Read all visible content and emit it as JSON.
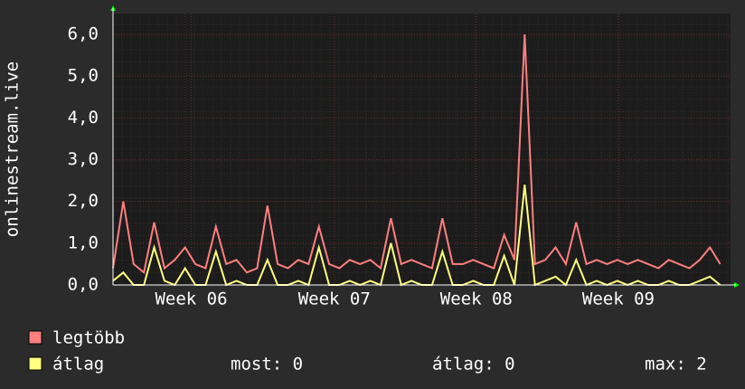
{
  "chart_data": {
    "type": "line",
    "y_label": "onlinestream.live",
    "x": [
      0,
      1,
      2,
      3,
      4,
      5,
      6,
      7,
      8,
      9,
      10,
      11,
      12,
      13,
      14,
      15,
      16,
      17,
      18,
      19,
      20,
      21,
      22,
      23,
      24,
      25,
      26,
      27,
      28,
      29,
      30,
      31,
      32,
      33,
      34,
      35,
      36,
      37,
      38,
      39,
      40,
      41,
      42,
      43,
      44,
      45,
      46,
      47,
      48,
      49,
      50,
      51,
      52,
      53,
      54,
      55,
      56,
      57,
      58,
      59
    ],
    "xlim": [
      0,
      60
    ],
    "xticks": [
      {
        "value": 7.6,
        "label": "Week 06"
      },
      {
        "value": 21.5,
        "label": "Week 07"
      },
      {
        "value": 35.3,
        "label": "Week 08"
      },
      {
        "value": 49.1,
        "label": "Week 09"
      }
    ],
    "ylim": [
      0,
      6.5
    ],
    "yticks": [
      {
        "value": 0,
        "label": "0,0"
      },
      {
        "value": 1,
        "label": "1,0"
      },
      {
        "value": 2,
        "label": "2,0"
      },
      {
        "value": 3,
        "label": "3,0"
      },
      {
        "value": 4,
        "label": "4,0"
      },
      {
        "value": 5,
        "label": "5,0"
      },
      {
        "value": 6,
        "label": "6,0"
      }
    ],
    "grid": true,
    "series": [
      {
        "name": "legtöbb",
        "color": "#ff7f7f",
        "values": [
          0.4,
          2.0,
          0.5,
          0.3,
          1.5,
          0.4,
          0.6,
          0.9,
          0.5,
          0.4,
          1.4,
          0.5,
          0.6,
          0.3,
          0.4,
          1.9,
          0.5,
          0.4,
          0.6,
          0.5,
          1.4,
          0.5,
          0.4,
          0.6,
          0.5,
          0.6,
          0.4,
          1.6,
          0.5,
          0.6,
          0.5,
          0.4,
          1.6,
          0.5,
          0.5,
          0.6,
          0.5,
          0.4,
          1.2,
          0.6,
          6.0,
          0.5,
          0.6,
          0.9,
          0.5,
          1.5,
          0.5,
          0.6,
          0.5,
          0.6,
          0.5,
          0.6,
          0.5,
          0.4,
          0.6,
          0.5,
          0.4,
          0.6,
          0.9,
          0.5
        ]
      },
      {
        "name": "átlag",
        "color": "#ffff7f",
        "values": [
          0.1,
          0.3,
          0.0,
          0.0,
          0.9,
          0.1,
          0.0,
          0.4,
          0.0,
          0.0,
          0.8,
          0.0,
          0.1,
          0.0,
          0.0,
          0.6,
          0.0,
          0.0,
          0.1,
          0.0,
          0.9,
          0.0,
          0.0,
          0.1,
          0.0,
          0.1,
          0.0,
          1.0,
          0.0,
          0.1,
          0.0,
          0.0,
          0.8,
          0.0,
          0.0,
          0.1,
          0.0,
          0.0,
          0.7,
          0.0,
          2.4,
          0.0,
          0.1,
          0.2,
          0.0,
          0.6,
          0.0,
          0.1,
          0.0,
          0.1,
          0.0,
          0.1,
          0.0,
          0.0,
          0.1,
          0.0,
          0.0,
          0.1,
          0.2,
          0.0
        ]
      }
    ],
    "summary": [
      "most: 0",
      "átlag: 0",
      "max: 2"
    ]
  }
}
